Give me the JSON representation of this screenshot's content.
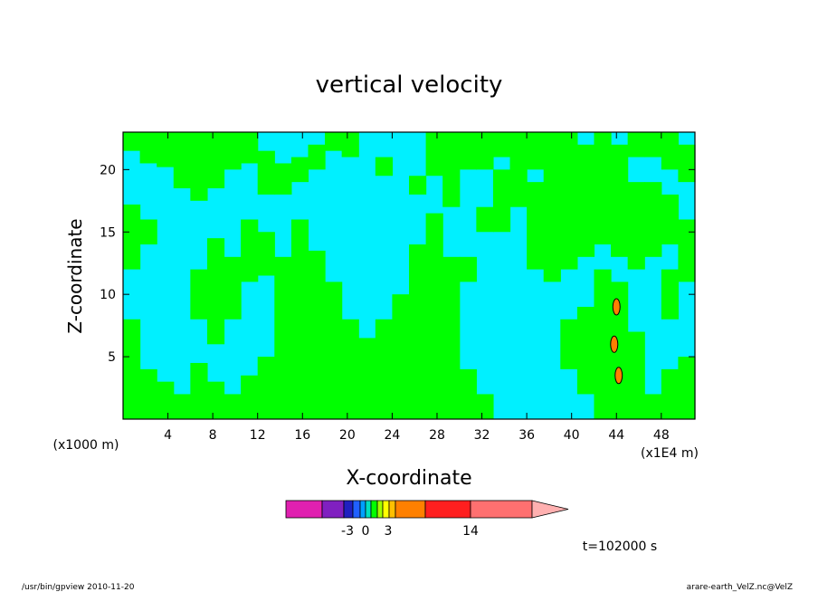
{
  "chart_data": {
    "type": "heatmap",
    "title": "vertical velocity",
    "xlabel": "X-coordinate",
    "ylabel": "Z-coordinate",
    "x_unit_left": "(x1000 m)",
    "x_unit_right": "(x1E4 m)",
    "xlim": [
      0,
      51
    ],
    "ylim": [
      0,
      23
    ],
    "x_ticks": [
      4,
      8,
      12,
      16,
      20,
      24,
      28,
      32,
      36,
      40,
      44,
      48
    ],
    "y_ticks": [
      5,
      10,
      15,
      20
    ],
    "grid": false,
    "bands": [
      {
        "x0": 0,
        "x1": 1.5,
        "color": "#00ff00",
        "z": [
          [
            0,
            8
          ],
          [
            12,
            17.2
          ],
          [
            21.5,
            23
          ]
        ]
      },
      {
        "x0": 1.5,
        "x1": 3,
        "color": "#00ff00",
        "z": [
          [
            0,
            4
          ],
          [
            14,
            16
          ],
          [
            20.5,
            23
          ]
        ]
      },
      {
        "x0": 3,
        "x1": 4.5,
        "color": "#00ff00",
        "z": [
          [
            0,
            3
          ],
          [
            20.2,
            23
          ]
        ]
      },
      {
        "x0": 4.5,
        "x1": 6,
        "color": "#00ff00",
        "z": [
          [
            0,
            2
          ],
          [
            18.5,
            23
          ]
        ]
      },
      {
        "x0": 6,
        "x1": 7.5,
        "color": "#00ff00",
        "z": [
          [
            0,
            4.5
          ],
          [
            8,
            12
          ],
          [
            17.5,
            23
          ]
        ]
      },
      {
        "x0": 7.5,
        "x1": 9,
        "color": "#00ff00",
        "z": [
          [
            0,
            3
          ],
          [
            6,
            14.5
          ],
          [
            18.5,
            23
          ]
        ]
      },
      {
        "x0": 9,
        "x1": 10.5,
        "color": "#00ff00",
        "z": [
          [
            0,
            2
          ],
          [
            8,
            13
          ],
          [
            20,
            23
          ]
        ]
      },
      {
        "x0": 10.5,
        "x1": 12,
        "color": "#00ff00",
        "z": [
          [
            0,
            3.5
          ],
          [
            11,
            16
          ],
          [
            20.5,
            23
          ]
        ]
      },
      {
        "x0": 12,
        "x1": 13.5,
        "color": "#00ff00",
        "z": [
          [
            0,
            5
          ],
          [
            11.5,
            15
          ],
          [
            18,
            21.5
          ]
        ]
      },
      {
        "x0": 13.5,
        "x1": 15,
        "color": "#00ff00",
        "z": [
          [
            0,
            13
          ],
          [
            18,
            20.5
          ]
        ]
      },
      {
        "x0": 15,
        "x1": 16.5,
        "color": "#00ff00",
        "z": [
          [
            0,
            16
          ],
          [
            19,
            21
          ]
        ]
      },
      {
        "x0": 16.5,
        "x1": 18,
        "color": "#00ff00",
        "z": [
          [
            0,
            13.5
          ],
          [
            20,
            22
          ]
        ]
      },
      {
        "x0": 18,
        "x1": 19.5,
        "color": "#00ff00",
        "z": [
          [
            0,
            11
          ],
          [
            21.5,
            23
          ]
        ]
      },
      {
        "x0": 19.5,
        "x1": 21,
        "color": "#00ff00",
        "z": [
          [
            0,
            8
          ],
          [
            21,
            23
          ]
        ]
      },
      {
        "x0": 21,
        "x1": 22.5,
        "color": "#00ff00",
        "z": [
          [
            0,
            6.5
          ]
        ]
      },
      {
        "x0": 22.5,
        "x1": 24,
        "color": "#00ff00",
        "z": [
          [
            0,
            8
          ],
          [
            19.5,
            21
          ]
        ]
      },
      {
        "x0": 24,
        "x1": 25.5,
        "color": "#00ff00",
        "z": [
          [
            0,
            10
          ]
        ]
      },
      {
        "x0": 25.5,
        "x1": 27,
        "color": "#00ff00",
        "z": [
          [
            0,
            14
          ],
          [
            18,
            19.5
          ]
        ]
      },
      {
        "x0": 27,
        "x1": 28.5,
        "color": "#00ff00",
        "z": [
          [
            0,
            16.5
          ],
          [
            19.5,
            23
          ]
        ]
      },
      {
        "x0": 28.5,
        "x1": 30,
        "color": "#00ff00",
        "z": [
          [
            0,
            13
          ],
          [
            17,
            23
          ]
        ]
      },
      {
        "x0": 30,
        "x1": 31.5,
        "color": "#00ff00",
        "z": [
          [
            0,
            4
          ],
          [
            11,
            13
          ],
          [
            20,
            23
          ]
        ]
      },
      {
        "x0": 31.5,
        "x1": 33,
        "color": "#00ff00",
        "z": [
          [
            0,
            2
          ],
          [
            15,
            17
          ],
          [
            20,
            23
          ]
        ]
      },
      {
        "x0": 33,
        "x1": 34.5,
        "color": "#00ff00",
        "z": [
          [
            15,
            20
          ],
          [
            21,
            23
          ]
        ]
      },
      {
        "x0": 34.5,
        "x1": 36,
        "color": "#00ff00",
        "z": [
          [
            17,
            23
          ]
        ]
      },
      {
        "x0": 36,
        "x1": 37.5,
        "color": "#00ff00",
        "z": [
          [
            12,
            19
          ],
          [
            20,
            23
          ]
        ]
      },
      {
        "x0": 37.5,
        "x1": 39,
        "color": "#00ff00",
        "z": [
          [
            11,
            23
          ]
        ]
      },
      {
        "x0": 39,
        "x1": 40.5,
        "color": "#00ff00",
        "z": [
          [
            4,
            8
          ],
          [
            12,
            23
          ]
        ]
      },
      {
        "x0": 40.5,
        "x1": 42,
        "color": "#00ff00",
        "z": [
          [
            2,
            9
          ],
          [
            13,
            22
          ]
        ]
      },
      {
        "x0": 42,
        "x1": 43.5,
        "color": "#00ff00",
        "z": [
          [
            0,
            12
          ],
          [
            14,
            23
          ]
        ]
      },
      {
        "x0": 43.5,
        "x1": 45,
        "color": "#00ff00",
        "z": [
          [
            0,
            11
          ],
          [
            13,
            22
          ]
        ]
      },
      {
        "x0": 45,
        "x1": 46.5,
        "color": "#00ff00",
        "z": [
          [
            0,
            7
          ],
          [
            12,
            19
          ],
          [
            21,
            23
          ]
        ]
      },
      {
        "x0": 46.5,
        "x1": 48,
        "color": "#00ff00",
        "z": [
          [
            0,
            2
          ],
          [
            13,
            19
          ],
          [
            21,
            23
          ]
        ]
      },
      {
        "x0": 48,
        "x1": 49.5,
        "color": "#00ff00",
        "z": [
          [
            0,
            4
          ],
          [
            8,
            12
          ],
          [
            14,
            18
          ],
          [
            20,
            23
          ]
        ]
      },
      {
        "x0": 49.5,
        "x1": 51,
        "color": "#00ff00",
        "z": [
          [
            0,
            5
          ],
          [
            11,
            16
          ],
          [
            19,
            22
          ]
        ]
      }
    ],
    "hotspots": [
      {
        "x": 44.0,
        "z": 9.0,
        "color": "#ff7f00"
      },
      {
        "x": 43.8,
        "z": 6.0,
        "color": "#ff7f00"
      },
      {
        "x": 44.2,
        "z": 3.5,
        "color": "#ff7f00"
      }
    ],
    "colorbar": {
      "colors": [
        "#e020b0",
        "#8020c0",
        "#2020c0",
        "#2060ff",
        "#00a0ff",
        "#00e0c0",
        "#00ff00",
        "#a0ff00",
        "#ffff00",
        "#ffc000",
        "#ff8000",
        "#ff1f1f",
        "#ff7070",
        "#ffb0b0"
      ],
      "labels": [
        "-3",
        "0",
        "3",
        "14"
      ]
    },
    "background_color": "#00f0ff"
  },
  "time_label": "t=102000 s",
  "footer_left": "/usr/bin/gpview  2010-11-20",
  "footer_right": "arare-earth_VelZ.nc@VelZ"
}
